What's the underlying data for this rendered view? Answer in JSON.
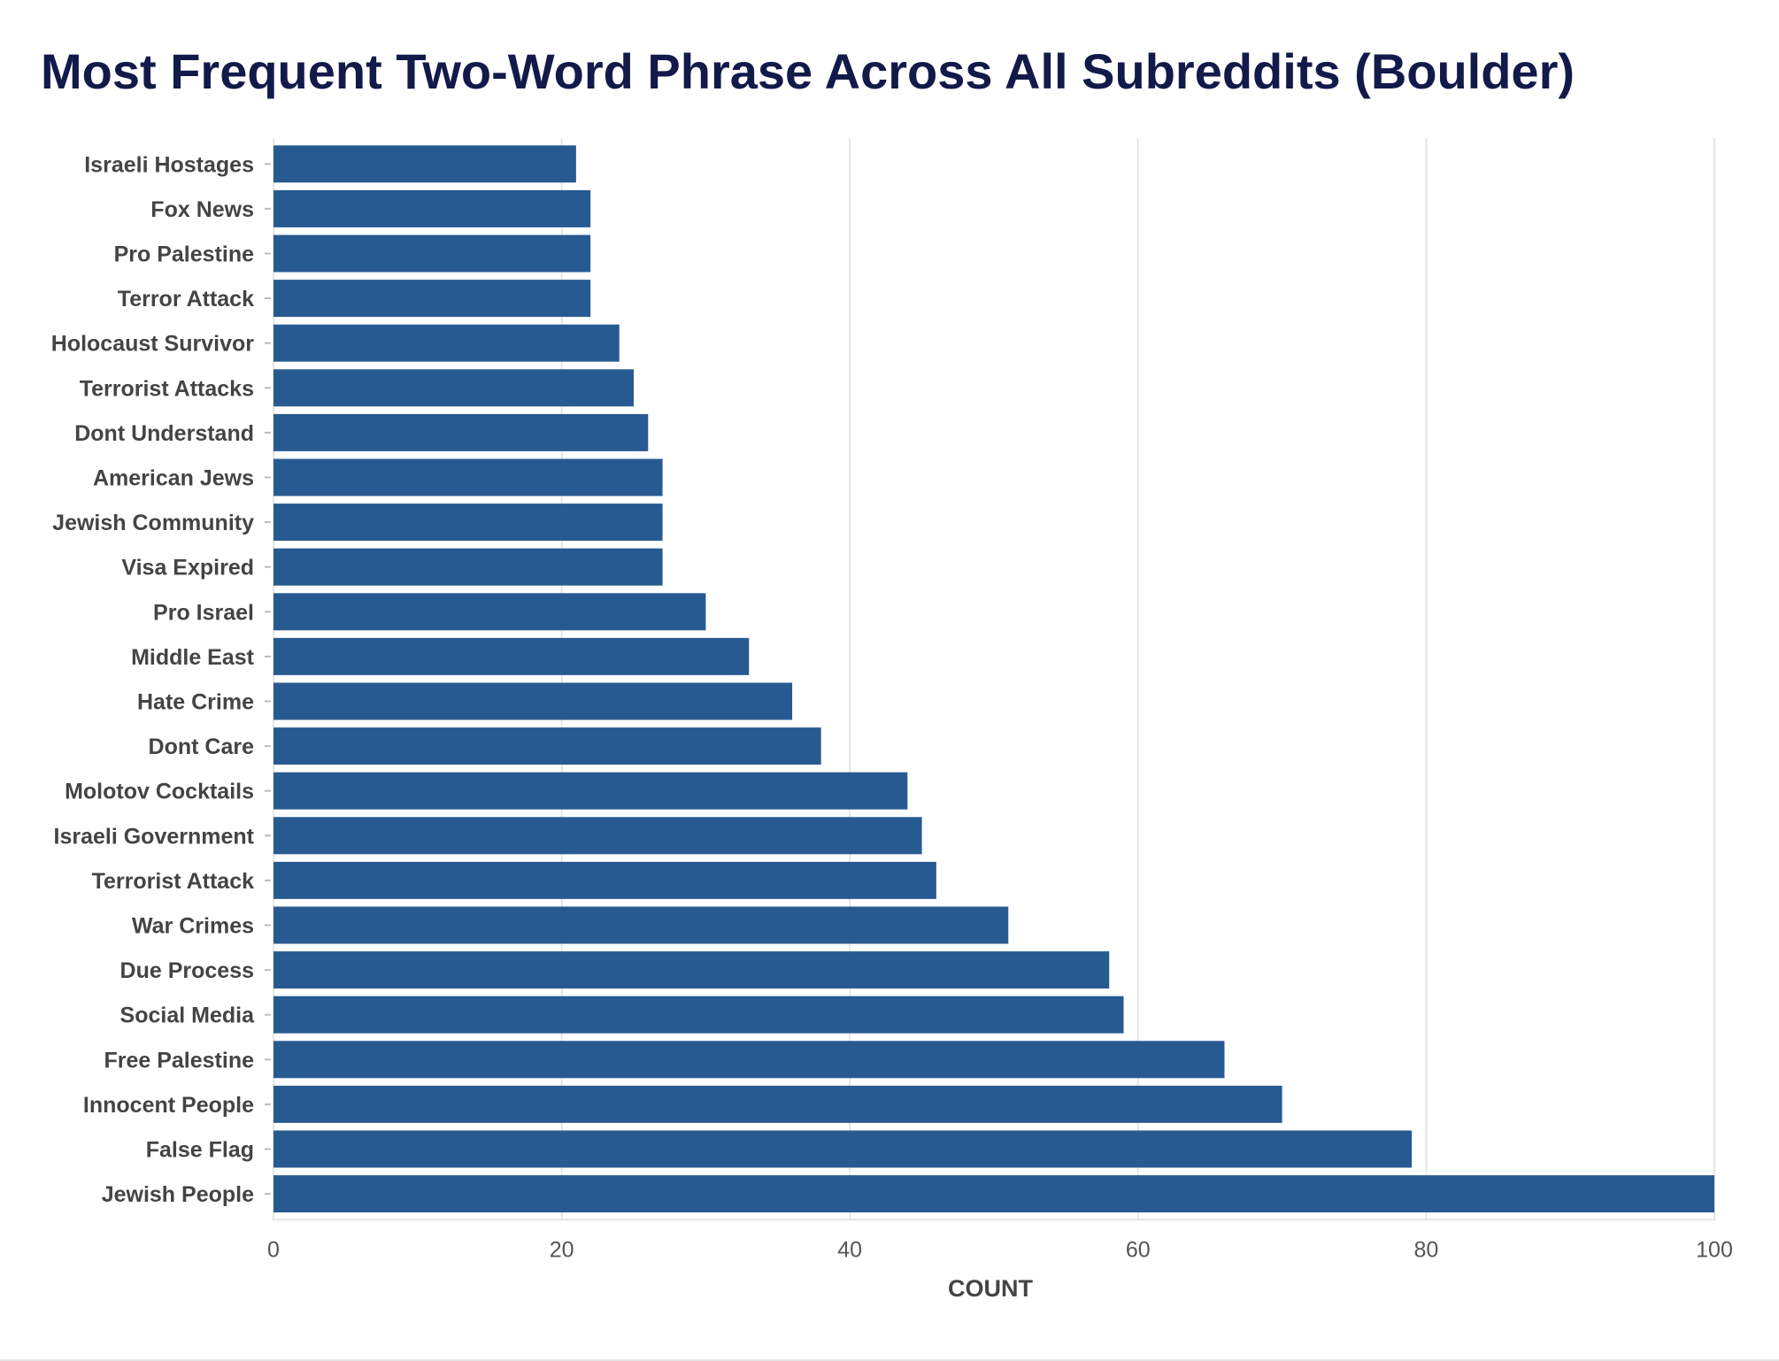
{
  "chart_data": {
    "type": "bar",
    "orientation": "horizontal",
    "title": "Most Frequent Two-Word Phrase Across All Subreddits (Boulder)",
    "xlabel": "COUNT",
    "ylabel": "",
    "xlim": [
      0,
      100
    ],
    "x_ticks": [
      0,
      20,
      40,
      60,
      80,
      100
    ],
    "grid": "vertical",
    "bar_color": "#285a92",
    "categories": [
      "Israeli Hostages",
      "Fox News",
      "Pro Palestine",
      "Terror Attack",
      "Holocaust Survivor",
      "Terrorist Attacks",
      "Dont Understand",
      "American Jews",
      "Jewish Community",
      "Visa Expired",
      "Pro Israel",
      "Middle East",
      "Hate Crime",
      "Dont Care",
      "Molotov Cocktails",
      "Israeli Government",
      "Terrorist Attack",
      "War Crimes",
      "Due Process",
      "Social Media",
      "Free Palestine",
      "Innocent People",
      "False Flag",
      "Jewish People"
    ],
    "values": [
      21,
      22,
      22,
      22,
      24,
      25,
      26,
      27,
      27,
      27,
      30,
      33,
      36,
      38,
      44,
      45,
      46,
      51,
      58,
      59,
      66,
      70,
      79,
      100
    ]
  }
}
